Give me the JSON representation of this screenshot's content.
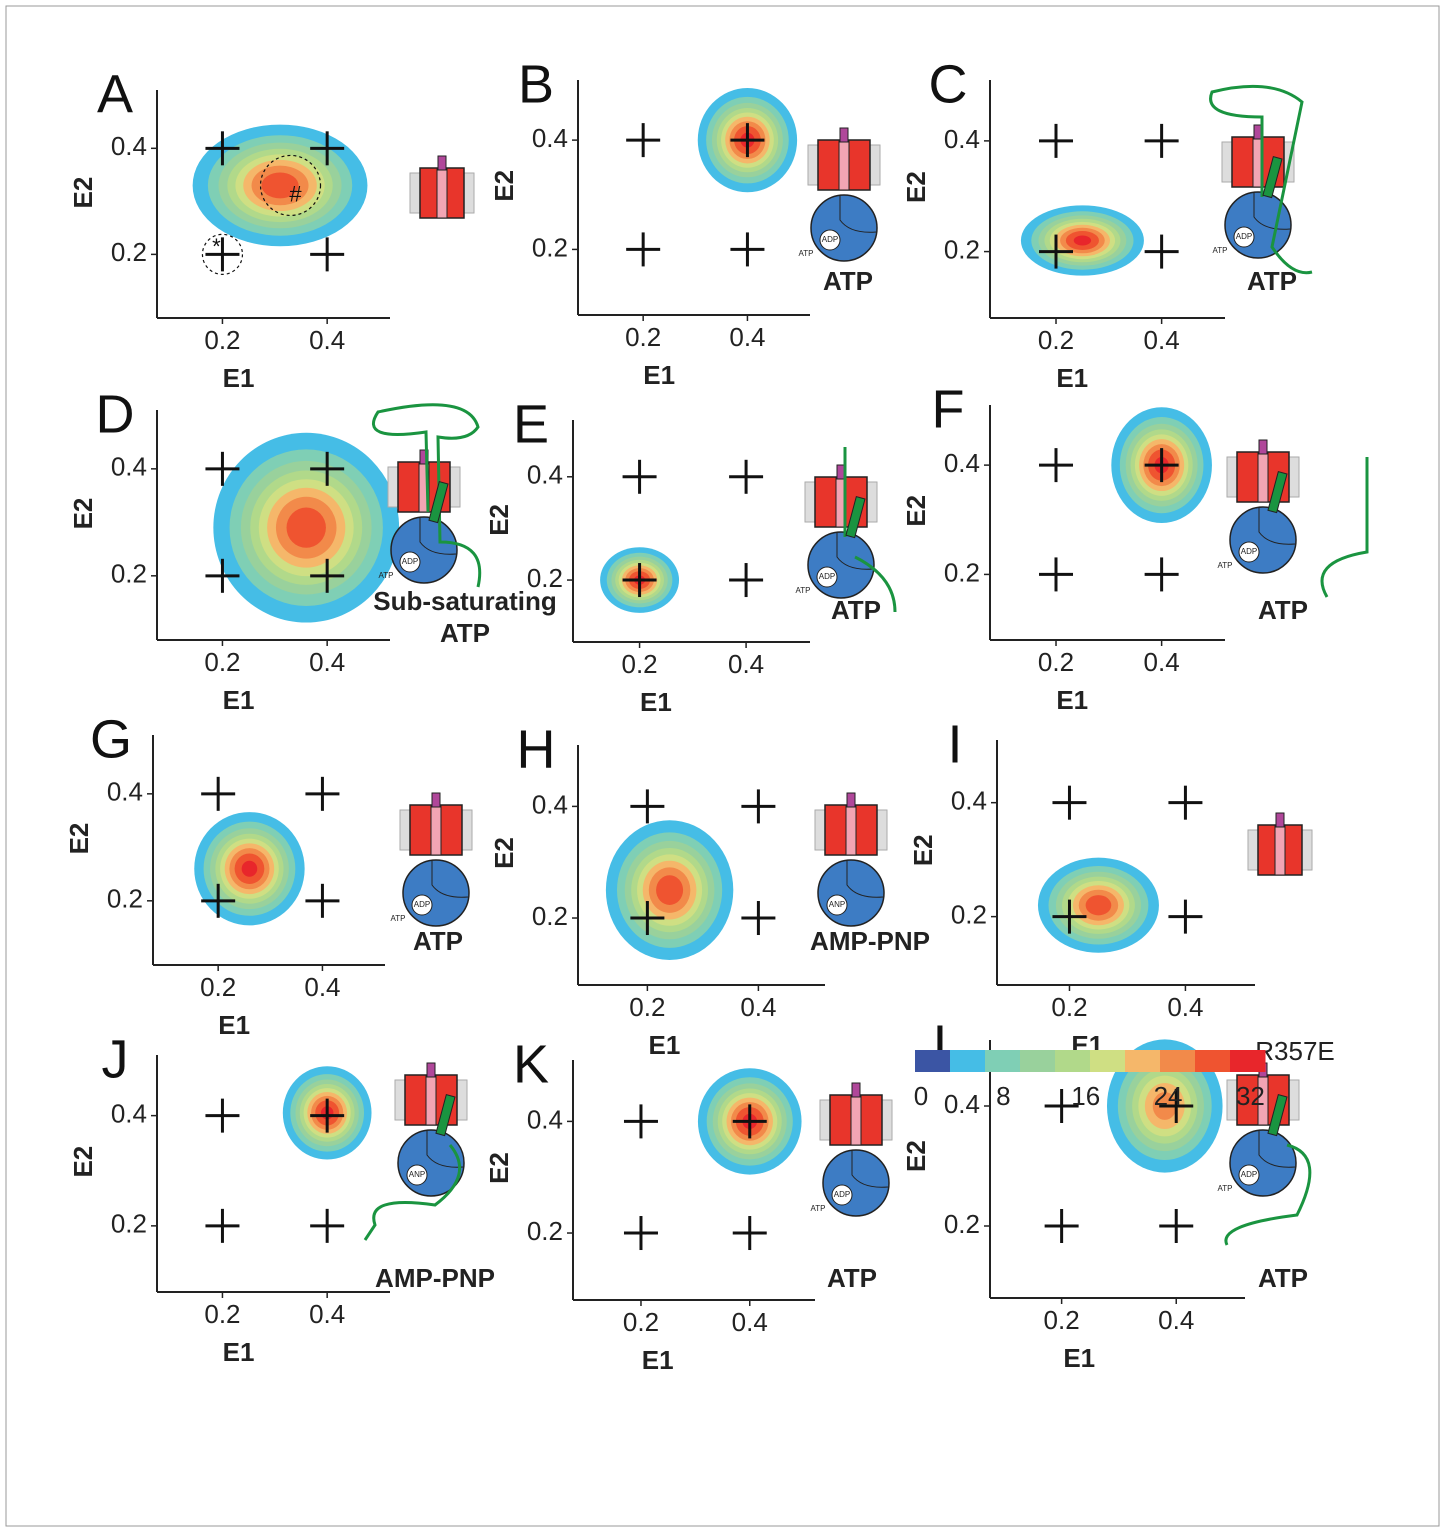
{
  "chart_data": [
    {
      "type": "contour",
      "label": "A",
      "x_label": "E1",
      "y_label": "E2",
      "xlim": [
        0.075,
        0.52
      ],
      "ylim": [
        0.08,
        0.51
      ],
      "xticks": [
        0.2,
        0.4
      ],
      "yticks": [
        0.2,
        0.4
      ],
      "points": {
        "x": [
          0.2,
          0.4,
          0.2,
          0.4
        ],
        "y": [
          0.4,
          0.4,
          0.2,
          0.2
        ]
      },
      "density": {
        "x": 0.31,
        "y": 0.33,
        "sx": 0.08,
        "sy": 0.055,
        "max": 30
      },
      "annotations": [
        {
          "text": "*",
          "x": 0.2,
          "y": 0.2
        },
        {
          "text": "#",
          "x": 0.33,
          "y": 0.33
        }
      ]
    },
    {
      "type": "contour",
      "label": "B",
      "x_label": "E1",
      "y_label": "E2",
      "xlim": [
        0.075,
        0.52
      ],
      "ylim": [
        0.08,
        0.51
      ],
      "xticks": [
        0.2,
        0.4
      ],
      "yticks": [
        0.2,
        0.4
      ],
      "points": {
        "x": [
          0.2,
          0.4,
          0.2,
          0.4
        ],
        "y": [
          0.4,
          0.4,
          0.2,
          0.2
        ]
      },
      "density": {
        "x": 0.4,
        "y": 0.4,
        "sx": 0.045,
        "sy": 0.045,
        "max": 32
      },
      "condition": [
        "ATP"
      ],
      "cartoon_text": [
        "ADP",
        "ATP"
      ]
    },
    {
      "type": "contour",
      "label": "C",
      "x_label": "E1",
      "y_label": "E2",
      "xlim": [
        0.075,
        0.52
      ],
      "ylim": [
        0.08,
        0.51
      ],
      "xticks": [
        0.2,
        0.4
      ],
      "yticks": [
        0.2,
        0.4
      ],
      "points": {
        "x": [
          0.2,
          0.4,
          0.2,
          0.4
        ],
        "y": [
          0.4,
          0.4,
          0.2,
          0.2
        ]
      },
      "density": {
        "x": 0.25,
        "y": 0.22,
        "sx": 0.055,
        "sy": 0.03,
        "max": 32
      },
      "condition": [
        "ATP"
      ],
      "cartoon_text": [
        "ADP",
        "ATP"
      ]
    },
    {
      "type": "contour",
      "label": "D",
      "x_label": "E1",
      "y_label": "E2",
      "xlim": [
        0.075,
        0.52
      ],
      "ylim": [
        0.08,
        0.51
      ],
      "xticks": [
        0.2,
        0.4
      ],
      "yticks": [
        0.2,
        0.4
      ],
      "points": {
        "x": [
          0.2,
          0.4,
          0.2,
          0.4
        ],
        "y": [
          0.4,
          0.4,
          0.2,
          0.2
        ]
      },
      "density": {
        "x": 0.36,
        "y": 0.29,
        "sx": 0.085,
        "sy": 0.085,
        "max": 30
      },
      "condition": [
        "Sub-saturating",
        "ATP"
      ],
      "cartoon_text": [
        "ADP",
        "ATP"
      ]
    },
    {
      "type": "contour",
      "label": "E",
      "x_label": "E1",
      "y_label": "E2",
      "xlim": [
        0.075,
        0.52
      ],
      "ylim": [
        0.08,
        0.51
      ],
      "xticks": [
        0.2,
        0.4
      ],
      "yticks": [
        0.2,
        0.4
      ],
      "points": {
        "x": [
          0.2,
          0.4,
          0.2,
          0.4
        ],
        "y": [
          0.4,
          0.4,
          0.2,
          0.2
        ]
      },
      "density": {
        "x": 0.2,
        "y": 0.2,
        "sx": 0.035,
        "sy": 0.03,
        "max": 32
      },
      "condition": [
        "ATP"
      ],
      "cartoon_text": [
        "ADP",
        "ATP"
      ]
    },
    {
      "type": "contour",
      "label": "F",
      "x_label": "E1",
      "y_label": "E2",
      "xlim": [
        0.075,
        0.52
      ],
      "ylim": [
        0.08,
        0.51
      ],
      "xticks": [
        0.2,
        0.4
      ],
      "yticks": [
        0.2,
        0.4
      ],
      "points": {
        "x": [
          0.2,
          0.4,
          0.2,
          0.4
        ],
        "y": [
          0.4,
          0.4,
          0.2,
          0.2
        ]
      },
      "density": {
        "x": 0.4,
        "y": 0.4,
        "sx": 0.045,
        "sy": 0.05,
        "max": 32
      },
      "condition": [
        "ATP"
      ],
      "cartoon_text": [
        "ADP",
        "ATP"
      ]
    },
    {
      "type": "contour",
      "label": "G",
      "x_label": "E1",
      "y_label": "E2",
      "xlim": [
        0.075,
        0.52
      ],
      "ylim": [
        0.08,
        0.51
      ],
      "xticks": [
        0.2,
        0.4
      ],
      "yticks": [
        0.2,
        0.4
      ],
      "points": {
        "x": [
          0.2,
          0.4,
          0.2,
          0.4
        ],
        "y": [
          0.4,
          0.4,
          0.2,
          0.2
        ]
      },
      "density": {
        "x": 0.26,
        "y": 0.26,
        "sx": 0.05,
        "sy": 0.05,
        "max": 32
      },
      "condition": [
        "ATP"
      ],
      "cartoon_text": [
        "ADP",
        "ATP"
      ]
    },
    {
      "type": "contour",
      "label": "H",
      "x_label": "E1",
      "y_label": "E2",
      "xlim": [
        0.075,
        0.52
      ],
      "ylim": [
        0.08,
        0.51
      ],
      "xticks": [
        0.2,
        0.4
      ],
      "yticks": [
        0.2,
        0.4
      ],
      "points": {
        "x": [
          0.2,
          0.4,
          0.2,
          0.4
        ],
        "y": [
          0.4,
          0.4,
          0.2,
          0.2
        ]
      },
      "density": {
        "x": 0.24,
        "y": 0.25,
        "sx": 0.055,
        "sy": 0.06,
        "max": 30
      },
      "condition": [
        "AMP-PNP"
      ],
      "cartoon_text": [
        "ANP"
      ]
    },
    {
      "type": "contour",
      "label": "I",
      "x_label": "E1",
      "y_label": "E2",
      "xlim": [
        0.075,
        0.52
      ],
      "ylim": [
        0.08,
        0.51
      ],
      "xticks": [
        0.2,
        0.4
      ],
      "yticks": [
        0.2,
        0.4
      ],
      "points": {
        "x": [
          0.2,
          0.4,
          0.2,
          0.4
        ],
        "y": [
          0.4,
          0.4,
          0.2,
          0.2
        ]
      },
      "density": {
        "x": 0.25,
        "y": 0.22,
        "sx": 0.05,
        "sy": 0.04,
        "max": 30
      }
    },
    {
      "type": "contour",
      "label": "J",
      "x_label": "E1",
      "y_label": "E2",
      "xlim": [
        0.075,
        0.52
      ],
      "ylim": [
        0.08,
        0.51
      ],
      "xticks": [
        0.2,
        0.4
      ],
      "yticks": [
        0.2,
        0.4
      ],
      "points": {
        "x": [
          0.2,
          0.4,
          0.2,
          0.4
        ],
        "y": [
          0.4,
          0.4,
          0.2,
          0.2
        ]
      },
      "density": {
        "x": 0.4,
        "y": 0.405,
        "sx": 0.04,
        "sy": 0.04,
        "max": 32
      },
      "condition": [
        "AMP-PNP"
      ],
      "cartoon_text": [
        "ANP"
      ]
    },
    {
      "type": "contour",
      "label": "K",
      "x_label": "E1",
      "y_label": "E2",
      "xlim": [
        0.075,
        0.52
      ],
      "ylim": [
        0.08,
        0.51
      ],
      "xticks": [
        0.2,
        0.4
      ],
      "yticks": [
        0.2,
        0.4
      ],
      "points": {
        "x": [
          0.2,
          0.4,
          0.2,
          0.4
        ],
        "y": [
          0.4,
          0.4,
          0.2,
          0.2
        ]
      },
      "density": {
        "x": 0.4,
        "y": 0.4,
        "sx": 0.045,
        "sy": 0.045,
        "max": 32
      },
      "condition": [
        "ATP"
      ],
      "cartoon_text": [
        "ADP",
        "ATP"
      ]
    },
    {
      "type": "contour",
      "label": "L",
      "x_label": "E1",
      "y_label": "E2",
      "xlim": [
        0.075,
        0.52
      ],
      "ylim": [
        0.08,
        0.51
      ],
      "xticks": [
        0.2,
        0.4
      ],
      "yticks": [
        0.2,
        0.4
      ],
      "points": {
        "x": [
          0.2,
          0.4,
          0.2,
          0.4
        ],
        "y": [
          0.4,
          0.4,
          0.2,
          0.2
        ]
      },
      "density": {
        "x": 0.38,
        "y": 0.4,
        "sx": 0.05,
        "sy": 0.055,
        "max": 26
      },
      "condition": [
        "ATP"
      ],
      "cartoon_text": [
        "ADP",
        "ATP"
      ],
      "mutation": "R357E"
    },
    {
      "type": "colorbar",
      "lim": [
        0,
        34
      ],
      "ticks": [
        0,
        8,
        16,
        24,
        32
      ],
      "colors": [
        "#3b55a4",
        "#45bde6",
        "#7fcfb5",
        "#99d19c",
        "#b1d98a",
        "#cfdf83",
        "#f5b76a",
        "#f28a4a",
        "#ef5430",
        "#e8262b"
      ]
    }
  ]
}
